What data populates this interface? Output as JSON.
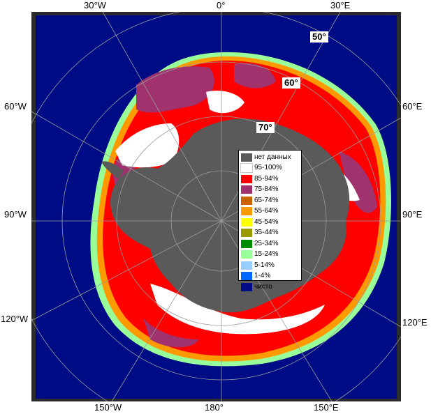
{
  "map": {
    "lon_labels": {
      "top_30w": "30°W",
      "top_0": "0°",
      "top_30e": "30°E",
      "left_60w": "60°W",
      "left_90w": "90°W",
      "left_120w": "120°W",
      "right_60e": "60°E",
      "right_90e": "90°E",
      "right_120e": "120°E",
      "bottom_150w": "150°W",
      "bottom_180": "180°",
      "bottom_150e": "150°E"
    },
    "lat_labels": {
      "lat50": "50°",
      "lat60": "60°",
      "lat70": "70°"
    },
    "colors": {
      "ocean": "#000c86",
      "land": "#5a5a5a",
      "frame": "#2b2b2b",
      "grid": "#9a9a9a"
    }
  },
  "legend": {
    "items": [
      {
        "label": "нет данных",
        "color": "#5a5a5a"
      },
      {
        "label": "95-100%",
        "color": "#ffffff"
      },
      {
        "label": "85-94%",
        "color": "#ff0000"
      },
      {
        "label": "75-84%",
        "color": "#a0336e"
      },
      {
        "label": "65-74%",
        "color": "#c86400"
      },
      {
        "label": "55-64%",
        "color": "#ff9900"
      },
      {
        "label": "45-54%",
        "color": "#ffff00"
      },
      {
        "label": "35-44%",
        "color": "#999900"
      },
      {
        "label": "25-34%",
        "color": "#008c00"
      },
      {
        "label": "15-24%",
        "color": "#99ff99"
      },
      {
        "label": "5-14%",
        "color": "#99ccff"
      },
      {
        "label": "1-4%",
        "color": "#0066ff"
      },
      {
        "label": "чисто",
        "color": "#000c86"
      }
    ]
  }
}
